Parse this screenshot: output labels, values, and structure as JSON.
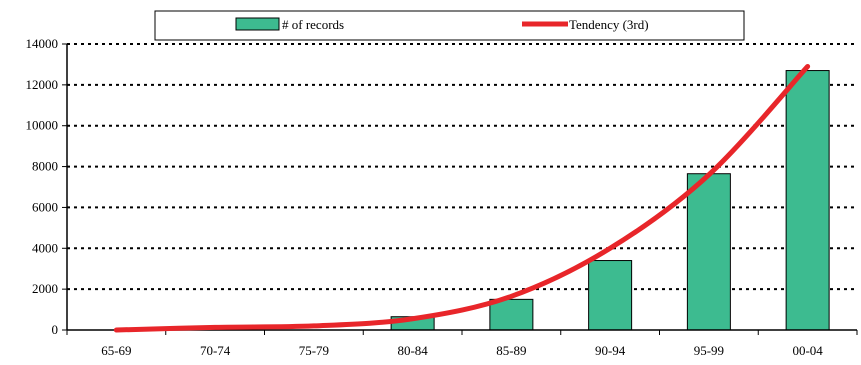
{
  "chart_data": {
    "type": "bar",
    "categories": [
      "65-69",
      "70-74",
      "75-79",
      "80-84",
      "85-89",
      "90-94",
      "95-99",
      "00-04"
    ],
    "series": [
      {
        "name": "# of records",
        "type": "bar",
        "color": "#3dbb90",
        "values": [
          0,
          0,
          0,
          650,
          1500,
          3400,
          7650,
          12700
        ]
      },
      {
        "name": "Tendency (3rd)",
        "type": "line",
        "color": "#e8262a",
        "values": [
          0,
          130,
          200,
          550,
          1650,
          4000,
          7600,
          12900
        ]
      }
    ],
    "ylim": [
      0,
      14000
    ],
    "yticks": [
      0,
      2000,
      4000,
      6000,
      8000,
      10000,
      12000,
      14000
    ],
    "grid": "dotted horizontal",
    "legend_position": "top"
  }
}
